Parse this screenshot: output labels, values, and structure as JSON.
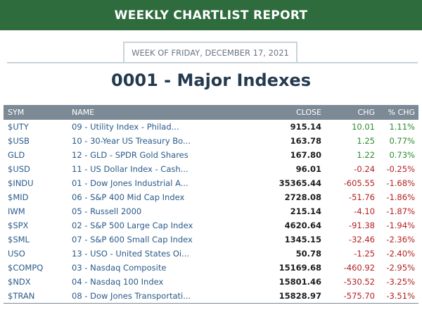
{
  "banner": {
    "title": "WEEKLY CHARTLIST REPORT"
  },
  "week": {
    "label": "WEEK OF FRIDAY, DECEMBER 17, 2021"
  },
  "page": {
    "title": "0001 - Major Indexes"
  },
  "colors": {
    "banner_bg": "#2e6b3d",
    "header_bg": "#7c8a96",
    "positive": "#2e8b2e",
    "negative": "#b52020",
    "link": "#2a5a8a"
  },
  "table": {
    "headers": {
      "sym": "SYM",
      "name": "NAME",
      "close": "CLOSE",
      "chg": "CHG",
      "pct": "% CHG"
    },
    "rows": [
      {
        "sym": "$UTY",
        "name": "09 - Utility Index - Philad...",
        "close": "915.14",
        "chg": "10.01",
        "pct": "1.11%",
        "dir": "pos"
      },
      {
        "sym": "$USB",
        "name": "10 - 30-Year US Treasury Bo...",
        "close": "163.78",
        "chg": "1.25",
        "pct": "0.77%",
        "dir": "pos"
      },
      {
        "sym": "GLD",
        "name": "12 - GLD - SPDR Gold Shares",
        "close": "167.80",
        "chg": "1.22",
        "pct": "0.73%",
        "dir": "pos"
      },
      {
        "sym": "$USD",
        "name": "11 - US Dollar Index - Cash...",
        "close": "96.01",
        "chg": "-0.24",
        "pct": "-0.25%",
        "dir": "neg"
      },
      {
        "sym": "$INDU",
        "name": "01 - Dow Jones Industrial A...",
        "close": "35365.44",
        "chg": "-605.55",
        "pct": "-1.68%",
        "dir": "neg"
      },
      {
        "sym": "$MID",
        "name": "06 - S&P 400 Mid Cap Index",
        "close": "2728.08",
        "chg": "-51.76",
        "pct": "-1.86%",
        "dir": "neg"
      },
      {
        "sym": "IWM",
        "name": "05 - Russell 2000",
        "close": "215.14",
        "chg": "-4.10",
        "pct": "-1.87%",
        "dir": "neg"
      },
      {
        "sym": "$SPX",
        "name": "02 - S&P 500 Large Cap Index",
        "close": "4620.64",
        "chg": "-91.38",
        "pct": "-1.94%",
        "dir": "neg"
      },
      {
        "sym": "$SML",
        "name": "07 - S&P 600 Small Cap Index",
        "close": "1345.15",
        "chg": "-32.46",
        "pct": "-2.36%",
        "dir": "neg"
      },
      {
        "sym": "USO",
        "name": "13 - USO - United States Oi...",
        "close": "50.78",
        "chg": "-1.25",
        "pct": "-2.40%",
        "dir": "neg"
      },
      {
        "sym": "$COMPQ",
        "name": "03 - Nasdaq Composite",
        "close": "15169.68",
        "chg": "-460.92",
        "pct": "-2.95%",
        "dir": "neg"
      },
      {
        "sym": "$NDX",
        "name": "04 - Nasdaq 100 Index",
        "close": "15801.46",
        "chg": "-530.52",
        "pct": "-3.25%",
        "dir": "neg"
      },
      {
        "sym": "$TRAN",
        "name": "08 - Dow Jones Transportati...",
        "close": "15828.97",
        "chg": "-575.70",
        "pct": "-3.51%",
        "dir": "neg"
      }
    ]
  }
}
